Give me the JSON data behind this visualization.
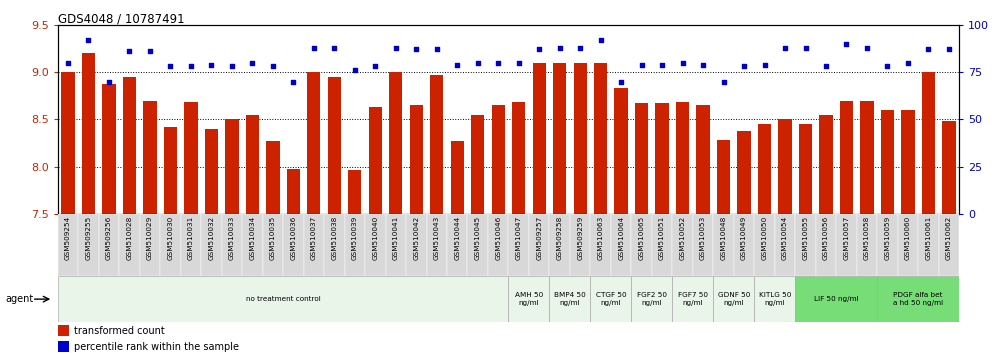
{
  "title": "GDS4048 / 10787491",
  "bar_color": "#cc2200",
  "dot_color": "#0000cc",
  "ylim_left": [
    7.5,
    9.5
  ],
  "ylim_right": [
    0,
    100
  ],
  "yticks_left": [
    7.5,
    8.0,
    8.5,
    9.0,
    9.5
  ],
  "yticks_right": [
    0,
    25,
    50,
    75,
    100
  ],
  "samples": [
    "GSM509254",
    "GSM509255",
    "GSM509256",
    "GSM510028",
    "GSM510029",
    "GSM510030",
    "GSM510031",
    "GSM510032",
    "GSM510033",
    "GSM510034",
    "GSM510035",
    "GSM510036",
    "GSM510037",
    "GSM510038",
    "GSM510039",
    "GSM510040",
    "GSM510041",
    "GSM510042",
    "GSM510043",
    "GSM510044",
    "GSM510045",
    "GSM510046",
    "GSM510047",
    "GSM509257",
    "GSM509258",
    "GSM509259",
    "GSM510063",
    "GSM510064",
    "GSM510065",
    "GSM510051",
    "GSM510052",
    "GSM510053",
    "GSM510048",
    "GSM510049",
    "GSM510050",
    "GSM510054",
    "GSM510055",
    "GSM510056",
    "GSM510057",
    "GSM510058",
    "GSM510059",
    "GSM510060",
    "GSM510061",
    "GSM510062"
  ],
  "bar_values": [
    9.0,
    9.2,
    8.87,
    8.95,
    8.7,
    8.42,
    8.68,
    8.4,
    8.5,
    8.55,
    8.27,
    7.98,
    9.0,
    8.95,
    7.97,
    8.63,
    9.0,
    8.65,
    8.97,
    8.27,
    8.55,
    8.65,
    8.68,
    9.1,
    9.1,
    9.1,
    9.1,
    8.83,
    8.67,
    8.67,
    8.68,
    8.65,
    8.28,
    8.38,
    8.45,
    8.5,
    8.45,
    8.55,
    8.7,
    8.7,
    8.6,
    8.6,
    9.0,
    8.48
  ],
  "dot_values": [
    80,
    92,
    70,
    86,
    86,
    78,
    78,
    79,
    78,
    80,
    78,
    70,
    88,
    88,
    76,
    78,
    88,
    87,
    87,
    79,
    80,
    80,
    80,
    87,
    88,
    88,
    92,
    70,
    79,
    79,
    80,
    79,
    70,
    78,
    79,
    88,
    88,
    78,
    90,
    88,
    78,
    80,
    87,
    87
  ],
  "agent_groups": [
    {
      "label": "no treatment control",
      "start": 0,
      "end": 22,
      "color": "#eaf5ea",
      "bright": false
    },
    {
      "label": "AMH 50\nng/ml",
      "start": 22,
      "end": 24,
      "color": "#eaf5ea",
      "bright": false
    },
    {
      "label": "BMP4 50\nng/ml",
      "start": 24,
      "end": 26,
      "color": "#eaf5ea",
      "bright": false
    },
    {
      "label": "CTGF 50\nng/ml",
      "start": 26,
      "end": 28,
      "color": "#eaf5ea",
      "bright": false
    },
    {
      "label": "FGF2 50\nng/ml",
      "start": 28,
      "end": 30,
      "color": "#eaf5ea",
      "bright": false
    },
    {
      "label": "FGF7 50\nng/ml",
      "start": 30,
      "end": 32,
      "color": "#eaf5ea",
      "bright": false
    },
    {
      "label": "GDNF 50\nng/ml",
      "start": 32,
      "end": 34,
      "color": "#eaf5ea",
      "bright": false
    },
    {
      "label": "KITLG 50\nng/ml",
      "start": 34,
      "end": 36,
      "color": "#eaf5ea",
      "bright": false
    },
    {
      "label": "LIF 50 ng/ml",
      "start": 36,
      "end": 40,
      "color": "#77dd77",
      "bright": true
    },
    {
      "label": "PDGF alfa bet\na hd 50 ng/ml",
      "start": 40,
      "end": 44,
      "color": "#77dd77",
      "bright": true
    }
  ],
  "background_color": "#ffffff",
  "tick_label_bg": "#d8d8d8"
}
